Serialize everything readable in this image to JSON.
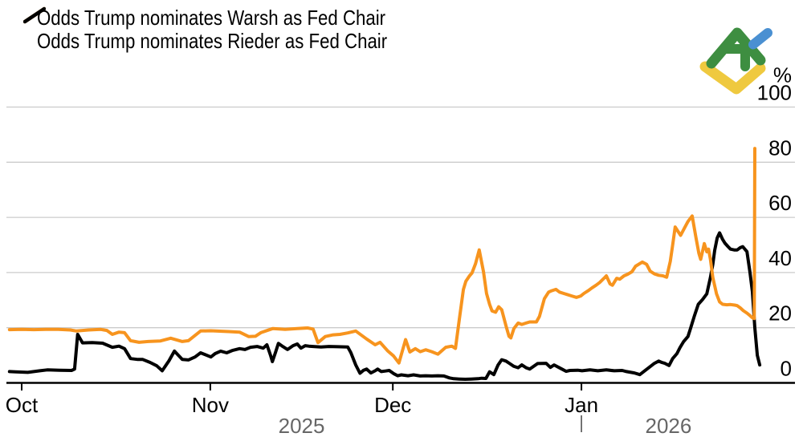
{
  "legend": {
    "items": [
      {
        "label": "Odds Trump nominates Warsh as Fed Chair",
        "color": "#F7941E",
        "swatch": "diagonal-line"
      },
      {
        "label": "Odds Trump nominates Rieder as Fed Chair",
        "color": "#000000",
        "swatch": "diagonal-line"
      }
    ]
  },
  "y_axis": {
    "unit_label": "%",
    "side": "right",
    "range": [
      0,
      100
    ],
    "ticks": [
      0,
      20,
      40,
      60,
      80,
      100
    ]
  },
  "x_axis": {
    "day0_date": "2025-09-28",
    "domain_days": [
      0.5,
      130
    ],
    "month_ticks": [
      {
        "label": "Oct",
        "day": 3
      },
      {
        "label": "Nov",
        "day": 34
      },
      {
        "label": "Dec",
        "day": 64
      },
      {
        "label": "Jan",
        "day": 95
      }
    ],
    "year_labels": [
      {
        "label": "2025",
        "day": 49
      },
      {
        "label": "2026",
        "day": 109.3
      }
    ],
    "year_separator_day": 95
  },
  "colors": {
    "background": "#ffffff",
    "grid": "#cbcbcb",
    "axis": "#000000",
    "text": "#000000",
    "year_text": "#666666"
  },
  "logo": {
    "name": "LiteFinance logo",
    "green": "#3E8E41",
    "yellow": "#EFC93F",
    "blue": "#4A90D2"
  },
  "chart_data": {
    "type": "line",
    "x_unit": "days since 2025-09-28 (from axis: Oct, Nov, Dec 2025, Jan 2026)",
    "y_unit": "percent",
    "ylim": [
      0,
      100
    ],
    "grid": "horizontal",
    "legend_position": "top-left",
    "series": [
      {
        "name": "Odds Trump nominates Warsh as Fed Chair",
        "color": "#F7941E",
        "points": [
          [
            1,
            19.3
          ],
          [
            3,
            19.4
          ],
          [
            5,
            19.3
          ],
          [
            7,
            19.4
          ],
          [
            9,
            19.4
          ],
          [
            11,
            19.2
          ],
          [
            12,
            18.8
          ],
          [
            14,
            19.2
          ],
          [
            16,
            19.4
          ],
          [
            17,
            19.0
          ],
          [
            17.9,
            17.6
          ],
          [
            19,
            18.4
          ],
          [
            19.9,
            18.2
          ],
          [
            20.9,
            15.3
          ],
          [
            22.3,
            14.7
          ],
          [
            23.8,
            15.0
          ],
          [
            25.8,
            15.2
          ],
          [
            27.5,
            16.2
          ],
          [
            29.4,
            15.0
          ],
          [
            30.4,
            15.3
          ],
          [
            32.4,
            18.8
          ],
          [
            34.1,
            18.9
          ],
          [
            37,
            18.6
          ],
          [
            38.8,
            18.4
          ],
          [
            40.3,
            16.8
          ],
          [
            41.4,
            16.9
          ],
          [
            42.3,
            18.2
          ],
          [
            44.3,
            19.7
          ],
          [
            46.3,
            19.4
          ],
          [
            48.3,
            19.7
          ],
          [
            50,
            19.9
          ],
          [
            50.9,
            19.5
          ],
          [
            51.7,
            14.6
          ],
          [
            52.9,
            16.8
          ],
          [
            54.2,
            17.4
          ],
          [
            55.3,
            17.6
          ],
          [
            56.6,
            18.1
          ],
          [
            57.9,
            18.8
          ],
          [
            59.7,
            15.9
          ],
          [
            61.1,
            13.8
          ],
          [
            61.9,
            14.7
          ],
          [
            63.2,
            11.5
          ],
          [
            64.1,
            9.8
          ],
          [
            65,
            7.2
          ],
          [
            66.1,
            15.7
          ],
          [
            66.8,
            11.2
          ],
          [
            67.7,
            12.4
          ],
          [
            68.5,
            11.3
          ],
          [
            69.4,
            12.0
          ],
          [
            70.4,
            11.3
          ],
          [
            71.4,
            10.4
          ],
          [
            72.7,
            12.9
          ],
          [
            73.7,
            13.3
          ],
          [
            74.3,
            12.5
          ],
          [
            74.9,
            22.6
          ],
          [
            75.6,
            33.9
          ],
          [
            76,
            36.8
          ],
          [
            76.6,
            38.8
          ],
          [
            77,
            39.8
          ],
          [
            77.6,
            43.2
          ],
          [
            78.2,
            48.2
          ],
          [
            78.9,
            40.3
          ],
          [
            79.4,
            32.4
          ],
          [
            79.9,
            28.5
          ],
          [
            80.3,
            26.1
          ],
          [
            80.9,
            25.6
          ],
          [
            81.4,
            27.6
          ],
          [
            81.9,
            26.5
          ],
          [
            82.6,
            20.7
          ],
          [
            83.1,
            16.9
          ],
          [
            83.4,
            16.3
          ],
          [
            83.9,
            19.7
          ],
          [
            84.6,
            21.7
          ],
          [
            85.2,
            21.2
          ],
          [
            85.9,
            21.7
          ],
          [
            86.5,
            22.1
          ],
          [
            87.6,
            22.1
          ],
          [
            88.1,
            24.1
          ],
          [
            88.9,
            30.5
          ],
          [
            89.6,
            32.9
          ],
          [
            90.1,
            33.4
          ],
          [
            90.8,
            33.9
          ],
          [
            91.4,
            32.9
          ],
          [
            92.1,
            32.4
          ],
          [
            92.7,
            32.0
          ],
          [
            93.4,
            31.5
          ],
          [
            94.2,
            31.0
          ],
          [
            94.9,
            31.5
          ],
          [
            95.4,
            32.4
          ],
          [
            96.1,
            33.4
          ],
          [
            96.7,
            34.4
          ],
          [
            97.4,
            35.4
          ],
          [
            98,
            36.4
          ],
          [
            98.7,
            37.9
          ],
          [
            99.1,
            38.8
          ],
          [
            99.7,
            35.9
          ],
          [
            100.1,
            35.4
          ],
          [
            100.8,
            37.9
          ],
          [
            101.3,
            37.6
          ],
          [
            102,
            38.8
          ],
          [
            102.6,
            39.4
          ],
          [
            103.3,
            40.3
          ],
          [
            103.9,
            42.3
          ],
          [
            105,
            43.8
          ],
          [
            105.7,
            43.0
          ],
          [
            106.3,
            40.5
          ],
          [
            107,
            39.5
          ],
          [
            107.7,
            39.0
          ],
          [
            108.4,
            38.8
          ],
          [
            109,
            38.3
          ],
          [
            109.6,
            44.0
          ],
          [
            110,
            50.0
          ],
          [
            110.4,
            56.5
          ],
          [
            110.9,
            54.8
          ],
          [
            111.3,
            53.5
          ],
          [
            111.9,
            56.0
          ],
          [
            112.5,
            58.5
          ],
          [
            113.2,
            60.5
          ],
          [
            113.8,
            53.0
          ],
          [
            114.3,
            47.0
          ],
          [
            114.6,
            44.8
          ],
          [
            115.2,
            50.5
          ],
          [
            115.6,
            47.5
          ],
          [
            115.9,
            48.5
          ],
          [
            116.2,
            44.8
          ],
          [
            116.6,
            38.2
          ],
          [
            117.2,
            32.3
          ],
          [
            117.7,
            29.4
          ],
          [
            118.2,
            28.5
          ],
          [
            118.9,
            28.3
          ],
          [
            119.5,
            28.4
          ],
          [
            120.2,
            28.2
          ],
          [
            120.6,
            28.0
          ],
          [
            121.1,
            27.2
          ],
          [
            121.6,
            26.2
          ],
          [
            122.2,
            25.3
          ],
          [
            122.7,
            24.4
          ],
          [
            123.1,
            23.6
          ],
          [
            123.4,
            23.3
          ],
          [
            123.5,
            85.0
          ]
        ]
      },
      {
        "name": "Odds Trump nominates Rieder as Fed Chair",
        "color": "#000000",
        "points": [
          [
            1,
            4.1
          ],
          [
            2,
            4.0
          ],
          [
            4,
            3.8
          ],
          [
            6,
            4.4
          ],
          [
            7.2,
            4.7
          ],
          [
            9.2,
            4.6
          ],
          [
            11.2,
            4.5
          ],
          [
            11.7,
            5.0
          ],
          [
            12.2,
            17.6
          ],
          [
            13,
            14.5
          ],
          [
            14.6,
            14.6
          ],
          [
            16.3,
            14.4
          ],
          [
            17.9,
            12.9
          ],
          [
            19,
            13.3
          ],
          [
            19.9,
            12.4
          ],
          [
            20.9,
            8.8
          ],
          [
            22.1,
            8.5
          ],
          [
            22.9,
            8.5
          ],
          [
            24.1,
            7.4
          ],
          [
            25.2,
            6.2
          ],
          [
            26.1,
            4.4
          ],
          [
            27.2,
            8.0
          ],
          [
            28.1,
            11.5
          ],
          [
            29.4,
            8.5
          ],
          [
            30.4,
            8.3
          ],
          [
            31.5,
            9.4
          ],
          [
            32.4,
            10.9
          ],
          [
            33.2,
            10.2
          ],
          [
            34.1,
            9.4
          ],
          [
            34.8,
            10.6
          ],
          [
            35.7,
            11.5
          ],
          [
            36.7,
            10.9
          ],
          [
            37.7,
            11.8
          ],
          [
            38.8,
            12.4
          ],
          [
            39.7,
            12.1
          ],
          [
            40.6,
            12.9
          ],
          [
            41.7,
            13.2
          ],
          [
            42.7,
            12.6
          ],
          [
            43.3,
            13.8
          ],
          [
            43.9,
            10.0
          ],
          [
            44.2,
            7.7
          ],
          [
            44.7,
            11.0
          ],
          [
            45.2,
            14.3
          ],
          [
            45.9,
            13.2
          ],
          [
            46.7,
            12.1
          ],
          [
            47.6,
            13.5
          ],
          [
            48.3,
            14.1
          ],
          [
            48.9,
            12.6
          ],
          [
            49.6,
            13.5
          ],
          [
            50.2,
            13.3
          ],
          [
            50.9,
            13.2
          ],
          [
            52.2,
            13.0
          ],
          [
            53.5,
            13.2
          ],
          [
            54.9,
            13.1
          ],
          [
            56.6,
            13.0
          ],
          [
            57.1,
            11.0
          ],
          [
            57.9,
            6.5
          ],
          [
            58.6,
            3.5
          ],
          [
            59.2,
            4.6
          ],
          [
            59.7,
            5.0
          ],
          [
            60.4,
            3.6
          ],
          [
            61.1,
            4.4
          ],
          [
            61.5,
            5.0
          ],
          [
            62.1,
            4.1
          ],
          [
            62.8,
            4.3
          ],
          [
            63.4,
            4.5
          ],
          [
            64.1,
            3.4
          ],
          [
            64.8,
            2.6
          ],
          [
            65.4,
            2.9
          ],
          [
            66.5,
            2.6
          ],
          [
            67.4,
            2.9
          ],
          [
            68.5,
            2.5
          ],
          [
            69.4,
            2.6
          ],
          [
            70.4,
            2.5
          ],
          [
            71.4,
            2.6
          ],
          [
            72.4,
            2.5
          ],
          [
            73.3,
            1.8
          ],
          [
            74,
            1.5
          ],
          [
            74.9,
            1.4
          ],
          [
            75.9,
            1.3
          ],
          [
            76.9,
            1.4
          ],
          [
            78,
            1.5
          ],
          [
            78.6,
            1.7
          ],
          [
            79.3,
            1.6
          ],
          [
            79.9,
            4.0
          ],
          [
            80.6,
            3.0
          ],
          [
            81.3,
            6.5
          ],
          [
            81.9,
            8.4
          ],
          [
            82.6,
            7.9
          ],
          [
            83.2,
            7.0
          ],
          [
            83.9,
            6.0
          ],
          [
            84.6,
            5.5
          ],
          [
            85.2,
            6.5
          ],
          [
            85.9,
            5.5
          ],
          [
            86.5,
            5.0
          ],
          [
            87.8,
            7.0
          ],
          [
            89.2,
            7.1
          ],
          [
            89.9,
            5.6
          ],
          [
            90.5,
            6.5
          ],
          [
            91.8,
            5.0
          ],
          [
            92.5,
            4.2
          ],
          [
            93.1,
            4.5
          ],
          [
            94.4,
            4.6
          ],
          [
            95.1,
            4.4
          ],
          [
            96.4,
            4.7
          ],
          [
            97.7,
            4.4
          ],
          [
            99.1,
            4.7
          ],
          [
            100.4,
            4.4
          ],
          [
            101.7,
            4.5
          ],
          [
            102.4,
            4.1
          ],
          [
            103.7,
            3.6
          ],
          [
            104.6,
            3.0
          ],
          [
            105.4,
            4.4
          ],
          [
            106.3,
            5.9
          ],
          [
            107,
            7.1
          ],
          [
            107.7,
            7.9
          ],
          [
            108.2,
            7.4
          ],
          [
            108.7,
            7.1
          ],
          [
            109.4,
            6.3
          ],
          [
            110,
            8.8
          ],
          [
            110.7,
            10.6
          ],
          [
            111.2,
            12.8
          ],
          [
            111.8,
            15.0
          ],
          [
            112.5,
            16.8
          ],
          [
            112.9,
            19.5
          ],
          [
            113.6,
            24.5
          ],
          [
            114.2,
            28.5
          ],
          [
            114.9,
            30.2
          ],
          [
            115.6,
            32.3
          ],
          [
            116.2,
            38.2
          ],
          [
            116.6,
            43.0
          ],
          [
            116.9,
            48.0
          ],
          [
            117.3,
            52.5
          ],
          [
            117.7,
            54.4
          ],
          [
            118.2,
            52.0
          ],
          [
            118.6,
            50.6
          ],
          [
            119.1,
            49.4
          ],
          [
            119.5,
            48.5
          ],
          [
            120.1,
            48.2
          ],
          [
            120.6,
            48.2
          ],
          [
            121.1,
            49.0
          ],
          [
            121.5,
            49.4
          ],
          [
            122.2,
            47.6
          ],
          [
            122.7,
            40.0
          ],
          [
            123.1,
            33.0
          ],
          [
            123.5,
            20.0
          ],
          [
            123.9,
            10.0
          ],
          [
            124.3,
            6.5
          ]
        ]
      }
    ]
  }
}
